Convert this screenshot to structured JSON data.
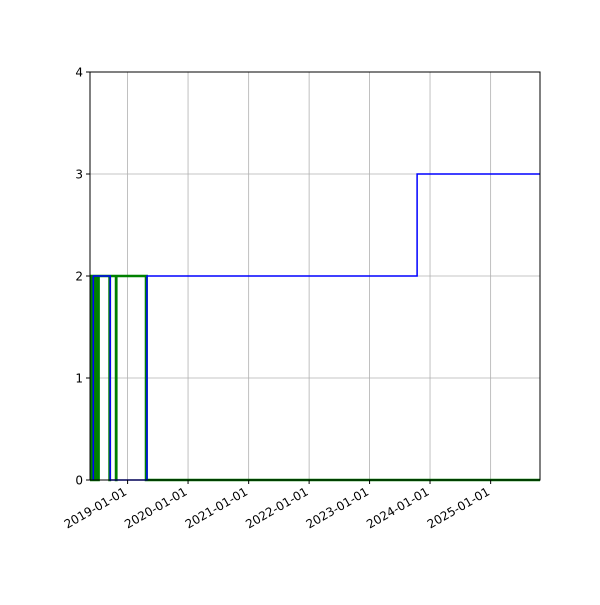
{
  "chart_data": {
    "type": "line",
    "step": true,
    "title": "",
    "xlabel": "",
    "ylabel": "",
    "xlim": [
      "2018-05-19",
      "2025-10-26"
    ],
    "ylim": [
      0,
      4
    ],
    "grid": true,
    "x_tick_labels": [
      "2019-01-01",
      "2020-01-01",
      "2021-01-01",
      "2022-01-01",
      "2023-01-01",
      "2024-01-01",
      "2025-01-01"
    ],
    "y_tick_labels": [
      "0",
      "1",
      "2",
      "3",
      "4"
    ],
    "series": [
      {
        "color": "#008000",
        "points": [
          [
            "2018-05-19",
            0
          ],
          [
            "2018-05-28",
            2
          ],
          [
            "2018-06-02",
            0
          ],
          [
            "2018-06-05",
            2
          ],
          [
            "2018-06-09",
            0
          ],
          [
            "2018-06-13",
            2
          ],
          [
            "2018-06-18",
            0
          ],
          [
            "2018-06-22",
            2
          ],
          [
            "2018-06-27",
            0
          ],
          [
            "2018-07-01",
            2
          ],
          [
            "2018-07-06",
            0
          ],
          [
            "2018-07-10",
            2
          ],
          [
            "2018-09-14",
            0
          ],
          [
            "2018-09-16",
            2
          ],
          [
            "2018-10-23",
            0
          ],
          [
            "2018-10-25",
            2
          ],
          [
            "2019-04-22",
            0
          ],
          [
            "2019-04-24",
            2
          ],
          [
            "2019-04-26",
            0
          ],
          [
            "2025-10-26",
            0
          ]
        ]
      },
      {
        "color": "#0000ff",
        "points": [
          [
            "2018-06-08",
            0
          ],
          [
            "2018-06-08",
            2
          ],
          [
            "2018-09-18",
            0
          ],
          [
            "2019-04-28",
            2
          ],
          [
            "2023-10-15",
            3
          ],
          [
            "2025-10-26",
            3
          ]
        ]
      }
    ]
  }
}
